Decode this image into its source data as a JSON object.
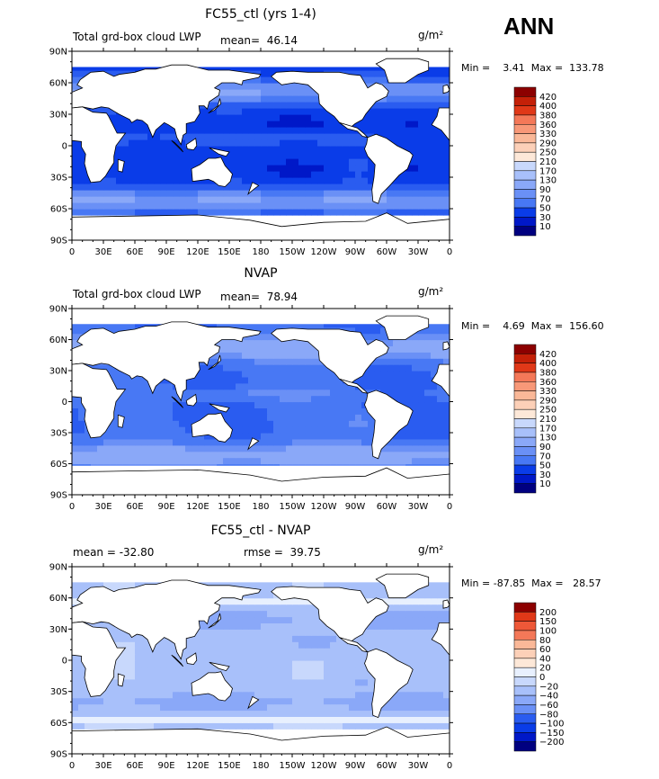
{
  "season": "ANN",
  "colors": {
    "levels_main": [
      "#000080",
      "#0018c8",
      "#0a3ce8",
      "#2a5cf0",
      "#4878f4",
      "#6a90f6",
      "#8aa8f8",
      "#a8c0fa",
      "#c8d8fc",
      "#e8f0fe",
      "#fde8d8",
      "#fcd0b8",
      "#fab898",
      "#f89878",
      "#f47858",
      "#ee5838",
      "#e03818",
      "#c42008",
      "#8c0000"
    ],
    "levels_diff": [
      "#000080",
      "#0018c8",
      "#0a3ce8",
      "#2a5cf0",
      "#4878f4",
      "#6a90f6",
      "#8aa8f8",
      "#a8c0fa",
      "#c8d8fc",
      "#e8f0fe",
      "#fde8d8",
      "#fcd0b8",
      "#fab898",
      "#f89878",
      "#f47858",
      "#ee5838",
      "#e03818",
      "#8c0000"
    ],
    "land": "#ffffff",
    "missing": "#ffffff"
  },
  "chart_data": [
    {
      "type": "heatmap",
      "title": "FC55_ctl (yrs 1-4)",
      "subtitle_left": "Total grd-box cloud LWP",
      "mean_text": "mean=  46.14",
      "units": "g/m²",
      "minmax_text": "Min =    3.41  Max =  133.78",
      "min": 3.41,
      "max": 133.78,
      "mean": 46.14,
      "x_ticks": [
        "0",
        "30E",
        "60E",
        "90E",
        "120E",
        "150E",
        "180",
        "150W",
        "120W",
        "90W",
        "60W",
        "30W",
        "0"
      ],
      "y_ticks": [
        "90N",
        "60N",
        "30N",
        "0",
        "30S",
        "60S",
        "90S"
      ],
      "colorbar_labels": [
        "420",
        "400",
        "380",
        "360",
        "330",
        "290",
        "250",
        "210",
        "170",
        "130",
        "90",
        "70",
        "50",
        "30",
        "10"
      ],
      "field": "model"
    },
    {
      "type": "heatmap",
      "title": "NVAP",
      "subtitle_left": "Total grd-box cloud LWP",
      "mean_text": "mean=  78.94",
      "units": "g/m²",
      "minmax_text": "Min =    4.69  Max =  156.60",
      "min": 4.69,
      "max": 156.6,
      "mean": 78.94,
      "x_ticks": [
        "0",
        "30E",
        "60E",
        "90E",
        "120E",
        "150E",
        "180",
        "150W",
        "120W",
        "90W",
        "60W",
        "30W",
        "0"
      ],
      "y_ticks": [
        "90N",
        "60N",
        "30N",
        "0",
        "30S",
        "60S",
        "90S"
      ],
      "colorbar_labels": [
        "420",
        "400",
        "380",
        "360",
        "330",
        "290",
        "250",
        "210",
        "170",
        "130",
        "90",
        "70",
        "50",
        "30",
        "10"
      ],
      "field": "obs"
    },
    {
      "type": "heatmap",
      "title": "FC55_ctl - NVAP",
      "subtitle_left": "mean = -32.80",
      "rmse_text": "rmse =  39.75",
      "units": "g/m²",
      "minmax_text": "Min = -87.85  Max =   28.57",
      "min": -87.85,
      "max": 28.57,
      "mean": -32.8,
      "rmse": 39.75,
      "x_ticks": [
        "0",
        "30E",
        "60E",
        "90E",
        "120E",
        "150E",
        "180",
        "150W",
        "120W",
        "90W",
        "60W",
        "30W",
        "0"
      ],
      "y_ticks": [
        "90N",
        "60N",
        "30N",
        "0",
        "30S",
        "60S",
        "90S"
      ],
      "colorbar_labels": [
        "200",
        "150",
        "100",
        "80",
        "60",
        "40",
        "20",
        "0",
        "−20",
        "−40",
        "−60",
        "−80",
        "−100",
        "−150",
        "−200"
      ],
      "field": "diff"
    }
  ]
}
